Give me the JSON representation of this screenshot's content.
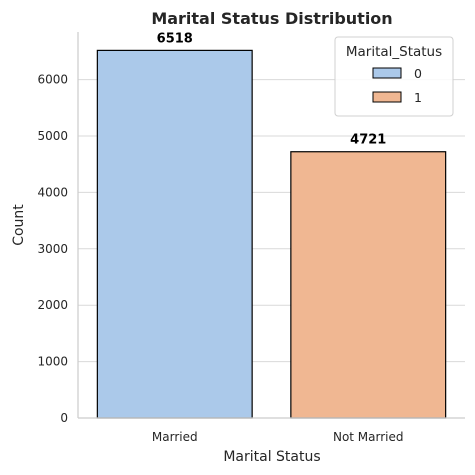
{
  "chart_data": {
    "type": "bar",
    "title": "Marital Status Distribution",
    "xlabel": "Marital Status",
    "ylabel": "Count",
    "categories": [
      "Married",
      "Not Married"
    ],
    "values": [
      6518,
      4721
    ],
    "data_labels": [
      "6518",
      "4721"
    ],
    "ylim": [
      0,
      6844
    ],
    "yticks": [
      0,
      1000,
      2000,
      3000,
      4000,
      5000,
      6000
    ],
    "ytick_labels": [
      "0",
      "1000",
      "2000",
      "3000",
      "4000",
      "5000",
      "6000"
    ],
    "grid": "y",
    "colors": [
      "#abc9ea",
      "#f0b792"
    ],
    "edge_color": "#000000",
    "legend": {
      "title": "Marital_Status",
      "position": "top-right",
      "entries": [
        {
          "label": "0",
          "color": "#abc9ea"
        },
        {
          "label": "1",
          "color": "#f0b792"
        }
      ]
    }
  }
}
